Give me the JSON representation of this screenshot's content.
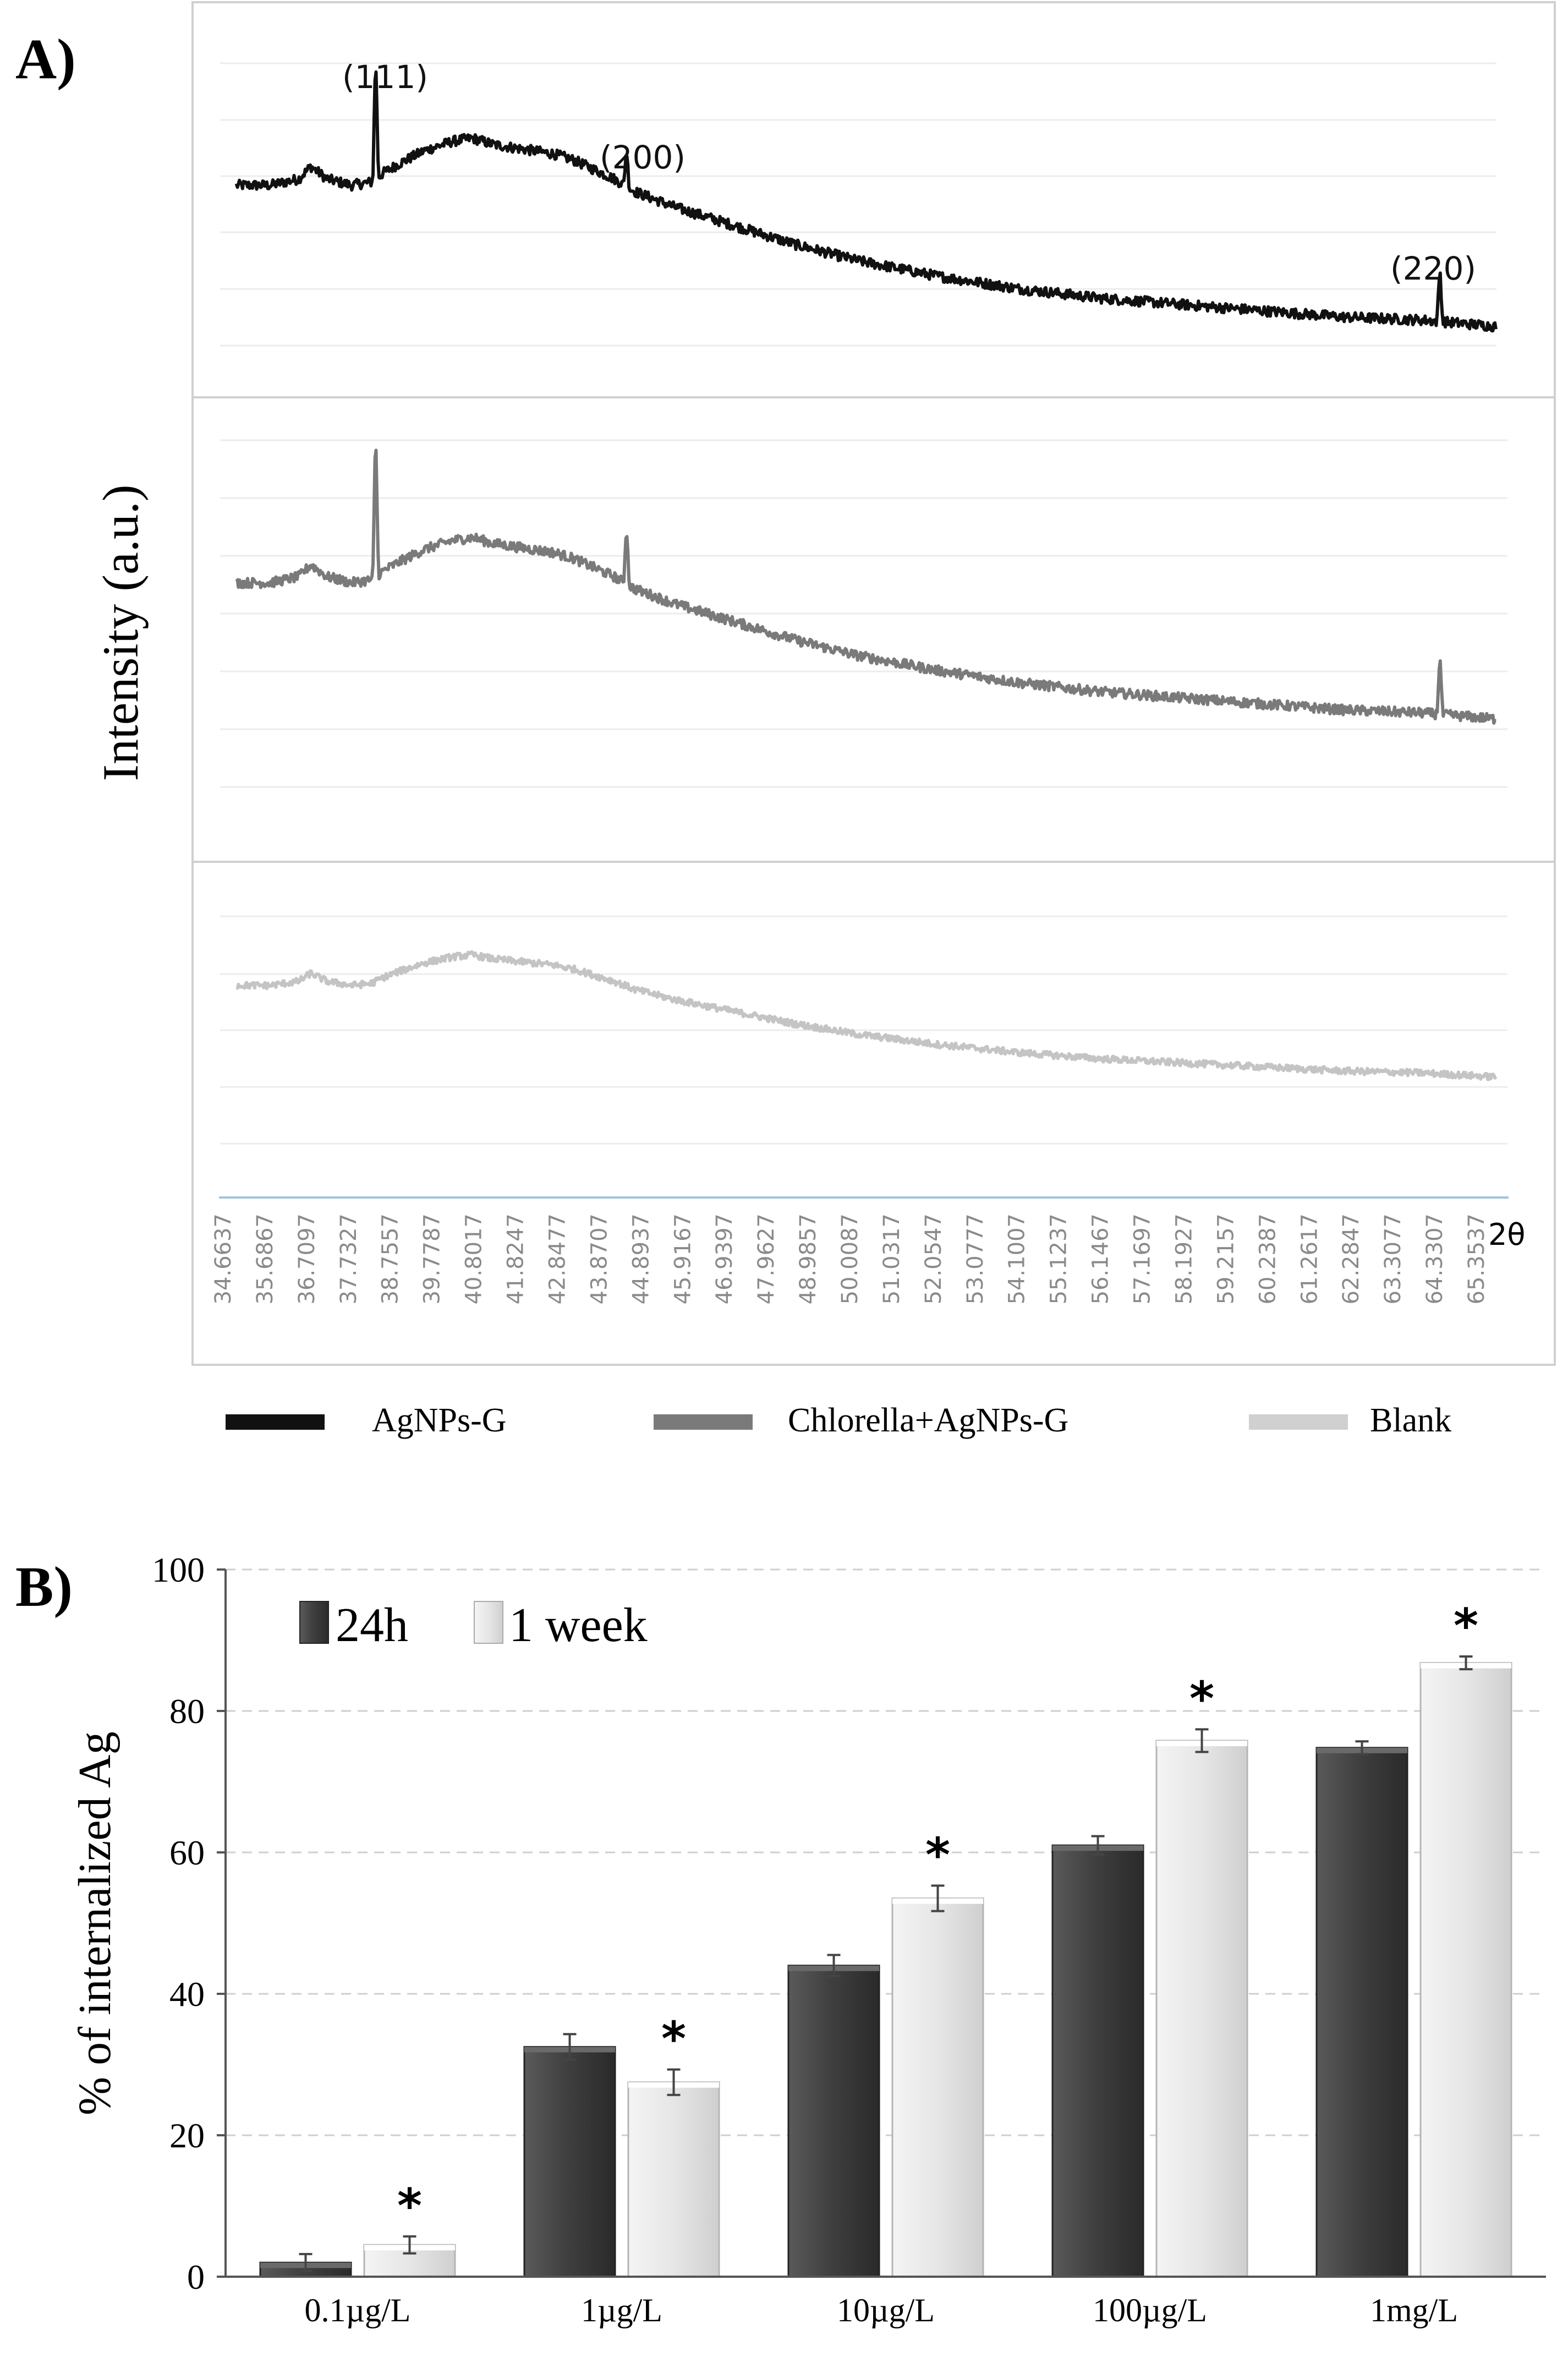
{
  "panel_a": {
    "label": "A)",
    "ylabel": "Intensity (a.u.)",
    "xlabel": "2θ",
    "peak_labels": [
      "(111)",
      "(200)",
      "(220)"
    ],
    "legend": [
      "AgNPs-G",
      "Chlorella+AgNPs-G",
      "Blank"
    ]
  },
  "panel_b": {
    "label": "B)",
    "ylabel": "% of internalized Ag",
    "legend": [
      "24h",
      "1 week"
    ],
    "significance_marker": "*"
  },
  "colors": {
    "agnps": "#111111",
    "chlorella": "#7a7a7a",
    "blank": "#c4c4c4",
    "bar_24h": "#3c3c3c",
    "bar_1week": "#e4e4e4",
    "axis_blue": "#9ec3e0"
  },
  "chart_data": [
    {
      "type": "line",
      "title": "XRD patterns",
      "xlabel": "2θ",
      "ylabel": "Intensity (a.u.)",
      "x_tick_labels": [
        "34.6637",
        "35.6867",
        "36.7097",
        "37.7327",
        "38.7557",
        "39.7787",
        "40.8017",
        "41.8247",
        "42.8477",
        "43.8707",
        "44.8937",
        "45.9167",
        "46.9397",
        "47.9627",
        "48.9857",
        "50.0087",
        "51.0317",
        "52.0547",
        "53.0777",
        "54.1007",
        "55.1237",
        "56.1467",
        "57.1697",
        "58.1927",
        "59.2157",
        "60.2387",
        "61.2617",
        "62.2847",
        "63.3077",
        "64.3307",
        "65.3537"
      ],
      "xlim": [
        34.6637,
        65.8
      ],
      "peaks": [
        {
          "x": 38.1,
          "label": "(111)"
        },
        {
          "x": 44.3,
          "label": "(200)"
        },
        {
          "x": 64.4,
          "label": "(220)"
        }
      ],
      "series": [
        {
          "name": "AgNPs-G",
          "x": [
            34.66,
            35.5,
            36.2,
            36.5,
            36.9,
            37.5,
            38.0,
            38.3,
            38.7,
            39.3,
            40.0,
            40.5,
            41.0,
            41.5,
            42.0,
            42.5,
            43.0,
            43.5,
            44.0,
            44.5,
            45.5,
            46.5,
            47.5,
            48.5,
            50.0,
            52.0,
            54.0,
            56.0,
            58.0,
            60.0,
            62.0,
            64.0,
            65.8
          ],
          "y": [
            62,
            62,
            64,
            68,
            64,
            62,
            63,
            66,
            69,
            73,
            76,
            77,
            75,
            74,
            73,
            72,
            70,
            67,
            64,
            60,
            55,
            51,
            47,
            43,
            38,
            33,
            29,
            26,
            24,
            22,
            20,
            19,
            17
          ],
          "peaks": [
            38.1,
            44.3,
            64.4
          ]
        },
        {
          "name": "Chlorella+AgNPs-G",
          "x": [
            34.66,
            35.5,
            36.2,
            36.5,
            36.9,
            37.5,
            38.0,
            38.3,
            38.7,
            39.3,
            40.0,
            40.5,
            41.0,
            41.5,
            42.0,
            42.5,
            43.0,
            43.5,
            44.0,
            44.5,
            45.5,
            46.5,
            47.5,
            48.5,
            50.0,
            52.0,
            54.0,
            56.0,
            58.0,
            60.0,
            62.0,
            64.0,
            65.8
          ],
          "y": [
            62,
            62,
            64,
            68,
            64,
            62,
            63,
            66,
            69,
            73,
            76,
            77,
            75,
            74,
            73,
            72,
            70,
            67,
            64,
            60,
            55,
            51,
            47,
            43,
            38,
            33,
            29,
            26,
            24,
            22,
            20,
            19,
            17
          ],
          "peaks": [
            38.1,
            44.3,
            64.4
          ]
        },
        {
          "name": "Blank",
          "x": [
            34.66,
            35.5,
            36.2,
            36.5,
            36.9,
            37.5,
            38.0,
            38.3,
            38.7,
            39.3,
            40.0,
            40.5,
            41.0,
            41.5,
            42.0,
            42.5,
            43.0,
            43.5,
            44.0,
            44.5,
            45.5,
            46.5,
            47.5,
            48.5,
            50.0,
            52.0,
            54.0,
            56.0,
            58.0,
            60.0,
            62.0,
            64.0,
            65.8
          ],
          "y": [
            62,
            62,
            64,
            68,
            64,
            62,
            63,
            66,
            69,
            73,
            76,
            77,
            75,
            74,
            73,
            72,
            70,
            67,
            64,
            60,
            55,
            51,
            47,
            43,
            38,
            33,
            29,
            26,
            24,
            22,
            20,
            19,
            17
          ],
          "peaks": []
        }
      ]
    },
    {
      "type": "bar",
      "title": "",
      "xlabel": "",
      "ylabel": "% of internalized Ag",
      "ylim": [
        0,
        100
      ],
      "y_ticks": [
        0,
        20,
        40,
        60,
        80,
        100
      ],
      "categories": [
        "0.1µg/L",
        "1µg/L",
        "10µg/L",
        "100µg/L",
        "1mg/L"
      ],
      "series": [
        {
          "name": "24h",
          "values": [
            2,
            32.5,
            44,
            61,
            74.8
          ],
          "errors": [
            1.2,
            1.8,
            1.5,
            1.3,
            0.9
          ],
          "significant": [
            false,
            false,
            false,
            false,
            false
          ]
        },
        {
          "name": "1 week",
          "values": [
            4.5,
            27.5,
            53.5,
            75.8,
            86.8
          ],
          "errors": [
            1.2,
            1.8,
            1.8,
            1.6,
            0.9
          ],
          "significant": [
            true,
            true,
            true,
            true,
            true
          ]
        }
      ]
    }
  ]
}
